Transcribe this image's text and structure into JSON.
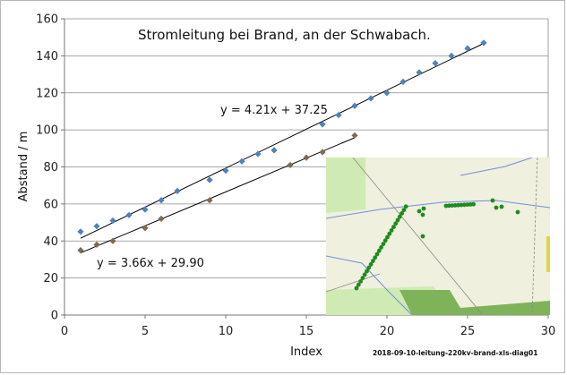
{
  "chart_data": {
    "type": "scatter",
    "title": "Stromleitung bei Brand, an der Schwabach.",
    "xlabel": "Index",
    "ylabel": "Abstand / m",
    "xlim": [
      0,
      30
    ],
    "ylim": [
      0,
      160
    ],
    "x_ticks": [
      "0",
      "5",
      "10",
      "15",
      "20",
      "25",
      "30"
    ],
    "y_ticks": [
      "0",
      "20",
      "40",
      "60",
      "80",
      "100",
      "120",
      "140",
      "160"
    ],
    "grid": {
      "horizontal": true,
      "vertical": false
    },
    "legend": "none",
    "series": [
      {
        "color": "#4f81bd",
        "marker": "diamond",
        "x": [
          1,
          2,
          3,
          4,
          5,
          6,
          7,
          9,
          10,
          11,
          12,
          13,
          16,
          17,
          18,
          19,
          20,
          21,
          22,
          23,
          24,
          25,
          26
        ],
        "y": [
          45,
          48,
          51,
          54,
          57,
          62,
          67,
          73,
          78,
          83,
          87,
          89,
          103,
          108,
          113,
          117,
          120,
          126,
          131,
          136,
          140,
          144,
          147
        ],
        "trendline": {
          "slope": 4.21,
          "intercept": 37.25,
          "x_range": [
            1,
            26
          ],
          "label": "y = 4.21x + 37.25"
        }
      },
      {
        "color": "#7d6b52",
        "marker": "diamond",
        "x": [
          1,
          2,
          3,
          5,
          6,
          9,
          14,
          15,
          16,
          18
        ],
        "y": [
          35,
          38,
          40,
          47,
          52,
          62,
          81,
          85,
          88,
          97
        ],
        "trendline": {
          "slope": 3.66,
          "intercept": 29.9,
          "x_range": [
            1,
            18
          ],
          "label": "y = 3.66x + 29.90"
        }
      }
    ]
  },
  "footer": {
    "caption": "2018-09-10-leitung-220kv-brand-xls-diag01"
  },
  "inset_map": {
    "colors": {
      "background": "#eff0dd",
      "meadow": "#cfeab2",
      "forest": "#7fb35a",
      "water": "#6f8fde",
      "marker": "#1f8a1f",
      "track": "#8a8a8a"
    }
  }
}
